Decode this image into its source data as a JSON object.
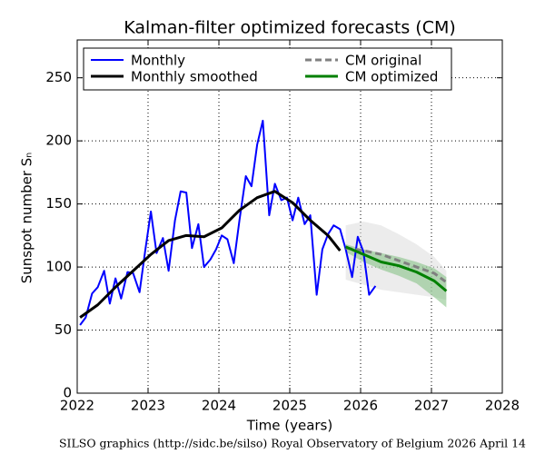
{
  "chart_data": {
    "type": "line",
    "title": "Kalman-filter optimized forecasts (CM)",
    "xlabel": "Time (years)",
    "ylabel": "Sunspot number Sₙ",
    "footnote": "SILSO graphics (http://sidc.be/silso)  Royal Observatory of Belgium  2026 April 14",
    "xlim": [
      2022,
      2028
    ],
    "xticks": [
      2022,
      2023,
      2024,
      2025,
      2026,
      2027,
      2028
    ],
    "ylim": [
      0,
      280
    ],
    "yticks": [
      0,
      50,
      100,
      150,
      200,
      250
    ],
    "grid": true,
    "legend": "upper-left",
    "series": [
      {
        "name": "Monthly",
        "color": "#0000ff",
        "style": "solid",
        "width": 2,
        "x": [
          2022.04,
          2022.12,
          2022.21,
          2022.29,
          2022.38,
          2022.46,
          2022.54,
          2022.62,
          2022.71,
          2022.79,
          2022.88,
          2022.96,
          2023.04,
          2023.12,
          2023.21,
          2023.29,
          2023.38,
          2023.46,
          2023.54,
          2023.62,
          2023.71,
          2023.79,
          2023.88,
          2023.96,
          2024.04,
          2024.12,
          2024.21,
          2024.29,
          2024.38,
          2024.46,
          2024.54,
          2024.62,
          2024.71,
          2024.79,
          2024.88,
          2024.96,
          2025.04,
          2025.12,
          2025.21,
          2025.29,
          2025.38,
          2025.46,
          2025.54,
          2025.62,
          2025.71,
          2025.79,
          2025.88,
          2025.96,
          2026.04,
          2026.12,
          2026.21
        ],
        "values": [
          54,
          60,
          79,
          84,
          97,
          71,
          91,
          75,
          96,
          95,
          80,
          113,
          144,
          111,
          123,
          97,
          137,
          160,
          159,
          115,
          134,
          100,
          106,
          114,
          125,
          122,
          103,
          137,
          172,
          164,
          197,
          216,
          141,
          166,
          153,
          155,
          137,
          155,
          134,
          141,
          78,
          114,
          126,
          133,
          130,
          114,
          92,
          124,
          112,
          78,
          85
        ]
      },
      {
        "name": "Monthly smoothed",
        "color": "#000000",
        "style": "solid",
        "width": 3,
        "x": [
          2022.04,
          2022.29,
          2022.54,
          2022.79,
          2023.04,
          2023.29,
          2023.54,
          2023.79,
          2024.04,
          2024.29,
          2024.54,
          2024.79,
          2025.04,
          2025.29,
          2025.54,
          2025.71
        ],
        "values": [
          60,
          70,
          84,
          97,
          110,
          121,
          125,
          124,
          131,
          145,
          155,
          160,
          151,
          137,
          125,
          113
        ]
      },
      {
        "name": "CM original",
        "color": "#808080",
        "style": "dashed",
        "width": 3,
        "band_color": "#dcdcdc",
        "x": [
          2025.79,
          2026.04,
          2026.29,
          2026.54,
          2026.79,
          2027.04,
          2027.21
        ],
        "values": [
          115,
          113,
          110,
          105,
          100,
          95,
          88
        ],
        "band_upper": [
          133,
          136,
          133,
          126,
          118,
          108,
          97
        ],
        "band_lower": [
          90,
          86,
          82,
          80,
          78,
          76,
          74
        ]
      },
      {
        "name": "CM optimized",
        "color": "#008000",
        "style": "solid",
        "width": 3,
        "band_color": "#7fbf7f",
        "x": [
          2025.79,
          2026.04,
          2026.29,
          2026.54,
          2026.79,
          2027.04,
          2027.21
        ],
        "values": [
          116,
          110,
          104,
          101,
          96,
          89,
          81
        ],
        "band_upper": [
          118,
          114,
          111,
          108,
          104,
          99,
          92
        ],
        "band_lower": [
          112,
          104,
          98,
          93,
          87,
          76,
          68
        ]
      }
    ]
  }
}
